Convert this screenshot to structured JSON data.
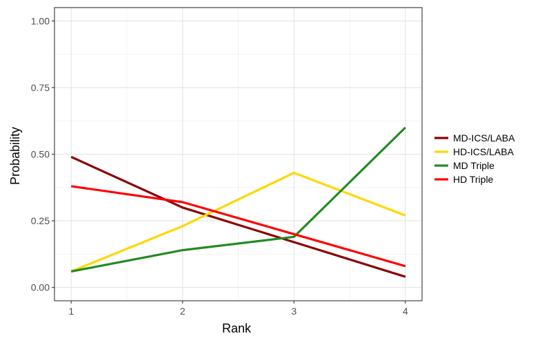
{
  "chart_data": {
    "type": "line",
    "title": "",
    "xlabel": "Rank",
    "ylabel": "Probability",
    "x": [
      1,
      2,
      3,
      4
    ],
    "x_ticks": [
      "1",
      "2",
      "3",
      "4"
    ],
    "y_ticks": [
      "0.00",
      "0.25",
      "0.50",
      "0.75",
      "1.00"
    ],
    "xlim": [
      0.85,
      4.15
    ],
    "ylim": [
      -0.05,
      1.05
    ],
    "grid": true,
    "legend_position": "right",
    "series": [
      {
        "name": "MD-ICS/LABA",
        "color": "#8B0000",
        "values": [
          0.49,
          0.3,
          0.17,
          0.04
        ]
      },
      {
        "name": "HD-ICS/LABA",
        "color": "#FFD700",
        "values": [
          0.06,
          0.23,
          0.43,
          0.27
        ]
      },
      {
        "name": "MD Triple",
        "color": "#228B22",
        "values": [
          0.06,
          0.14,
          0.19,
          0.6
        ]
      },
      {
        "name": "HD Triple",
        "color": "#FF0000",
        "values": [
          0.38,
          0.32,
          0.2,
          0.08
        ]
      }
    ]
  }
}
